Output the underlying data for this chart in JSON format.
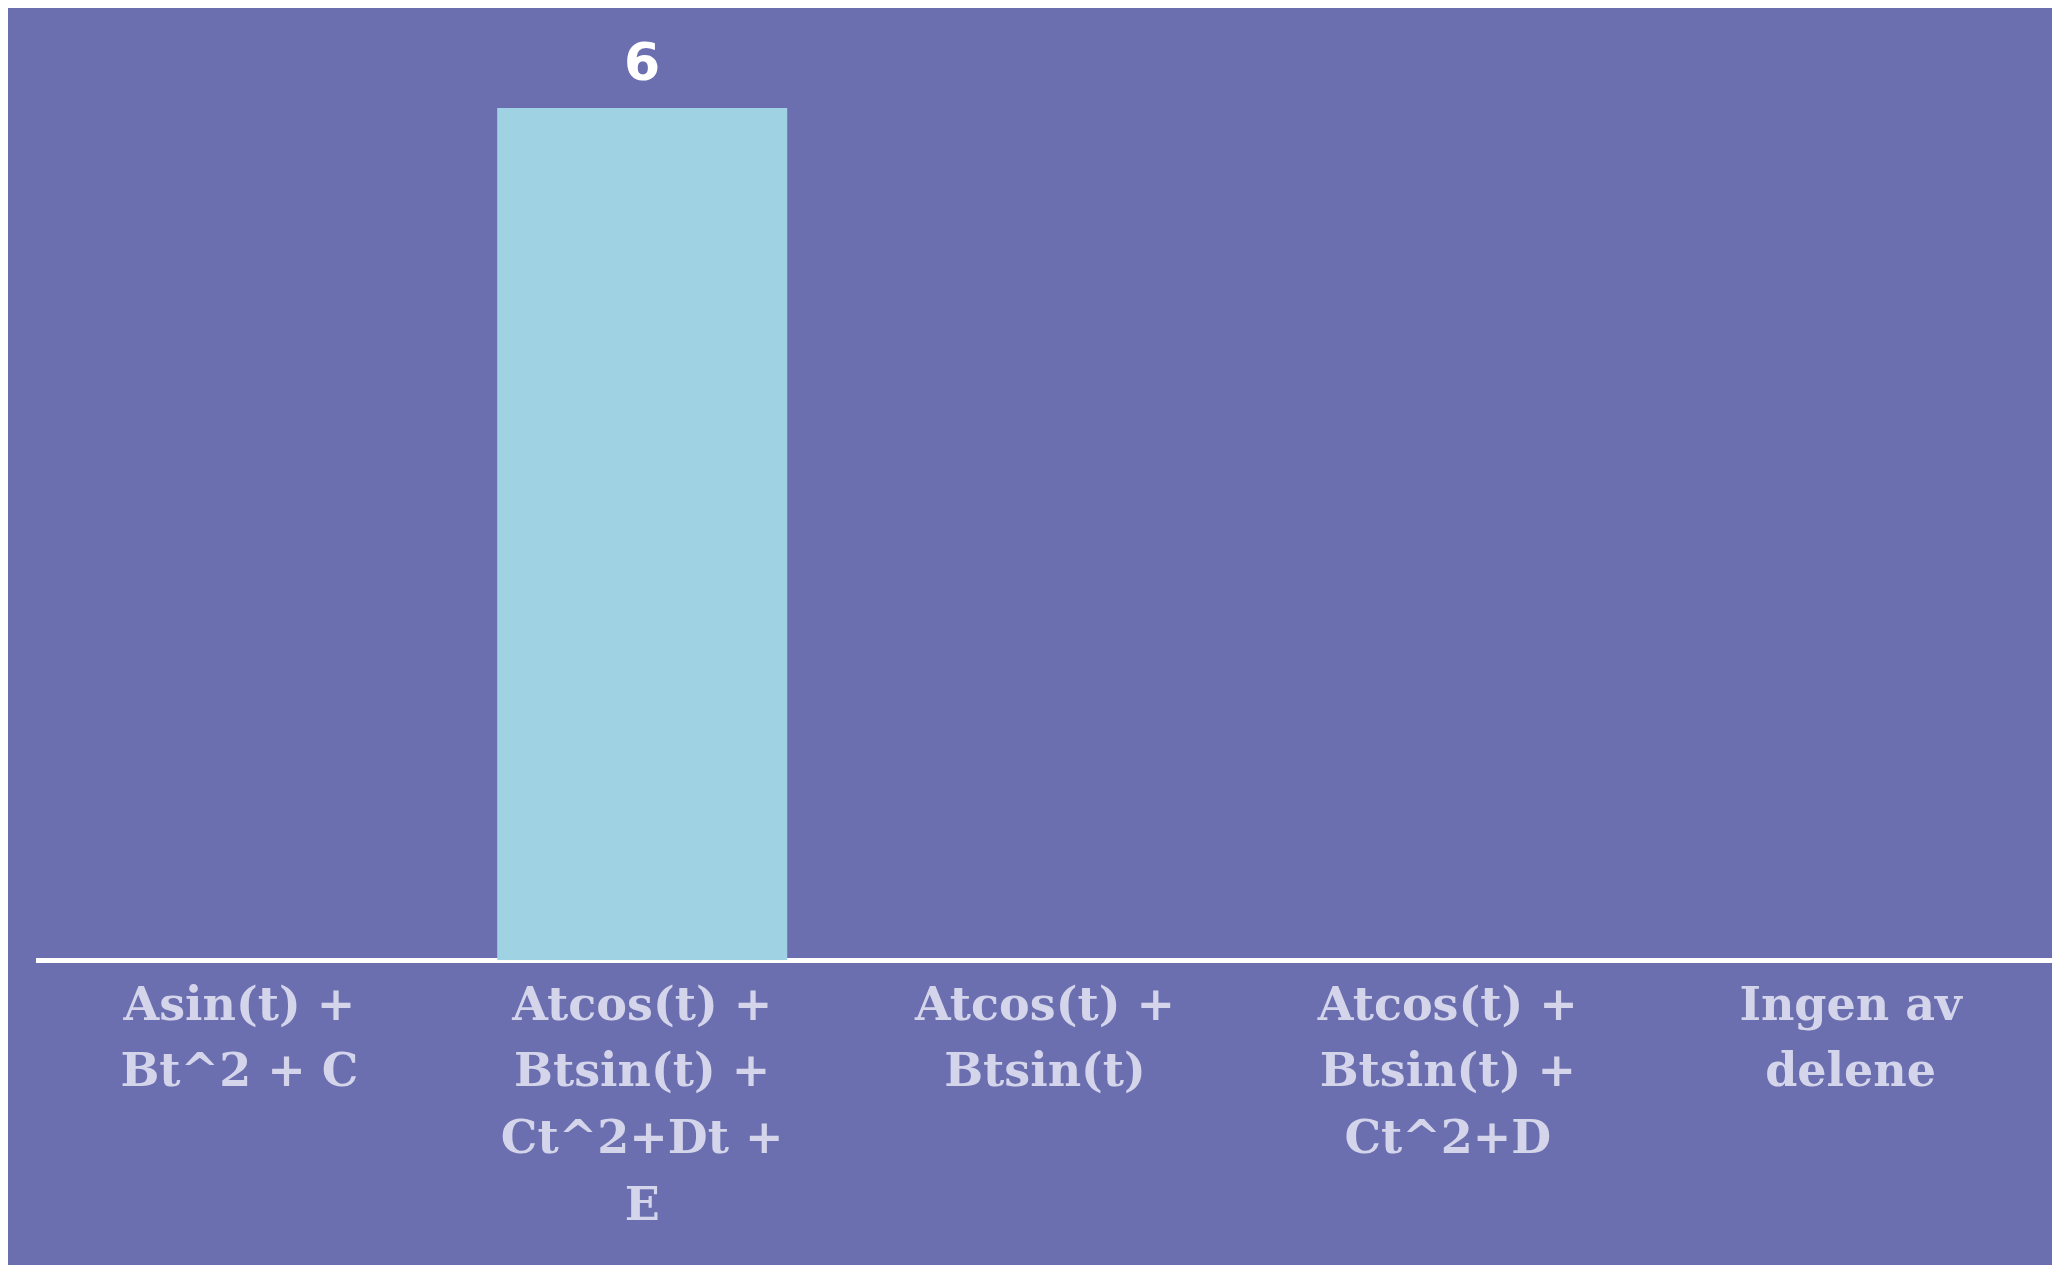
{
  "chart_data": {
    "type": "bar",
    "categories": [
      "Asin(t) + Bt^2 + C",
      "Atcos(t) + Btsin(t) + Ct^2+Dt + E",
      "Atcos(t) + Btsin(t)",
      "Atcos(t) + Btsin(t) + Ct^2+D",
      "Ingen av delene"
    ],
    "values": [
      0,
      6,
      0,
      0,
      0
    ],
    "value_labels": [
      null,
      "6",
      null,
      null,
      null
    ],
    "color": "#9fd3e3",
    "grid": false,
    "legend": false,
    "tick_labels": "x"
  }
}
